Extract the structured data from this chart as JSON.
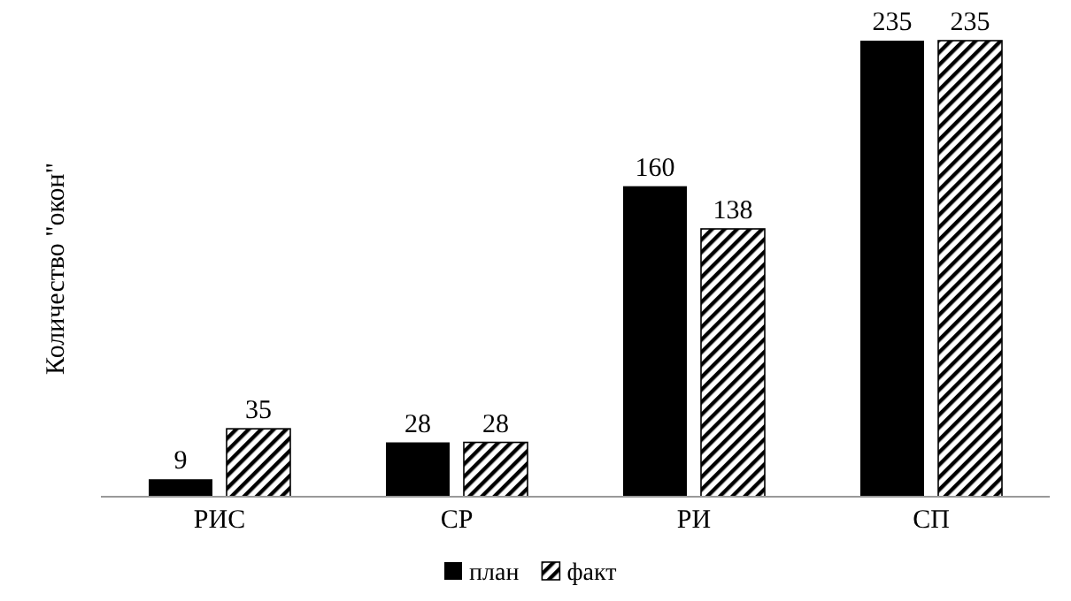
{
  "chart_data": {
    "type": "bar",
    "ylabel": "Количество \"окон\"",
    "categories": [
      "РИС",
      "СР",
      "РИ",
      "СП"
    ],
    "series": [
      {
        "name": "план",
        "color": "#000000",
        "values": [
          9,
          28,
          160,
          235
        ]
      },
      {
        "name": "факт",
        "color": "#000000",
        "values": [
          35,
          28,
          138,
          235
        ]
      }
    ],
    "ylim": [
      0,
      235
    ],
    "tick_labels": "x",
    "data_labels": true,
    "legend": "bottom"
  }
}
